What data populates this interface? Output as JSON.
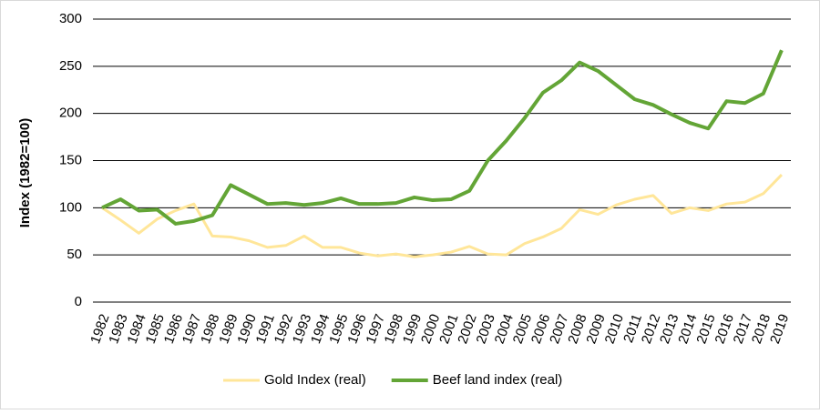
{
  "chart_data": {
    "type": "line",
    "ylabel": "Index (1982=100)",
    "categories": [
      "1982",
      "1983",
      "1984",
      "1985",
      "1986",
      "1987",
      "1988",
      "1989",
      "1990",
      "1991",
      "1992",
      "1993",
      "1994",
      "1995",
      "1996",
      "1997",
      "1998",
      "1999",
      "2000",
      "2001",
      "2002",
      "2003",
      "2004",
      "2005",
      "2006",
      "2007",
      "2008",
      "2009",
      "2010",
      "2011",
      "2012",
      "2013",
      "2014",
      "2015",
      "2016",
      "2017",
      "2018",
      "2019"
    ],
    "series": [
      {
        "name": "Gold Index (real)",
        "color": "#ffe699",
        "values": [
          100,
          87,
          73,
          88,
          97,
          104,
          70,
          69,
          65,
          58,
          60,
          70,
          58,
          58,
          52,
          49,
          51,
          48,
          50,
          53,
          59,
          51,
          50,
          62,
          69,
          78,
          98,
          93,
          103,
          109,
          113,
          94,
          100,
          97,
          104,
          106,
          115,
          135
        ]
      },
      {
        "name": "Beef land index (real)",
        "color": "#63a536",
        "values": [
          100,
          109,
          97,
          98,
          83,
          86,
          92,
          124,
          114,
          104,
          105,
          103,
          105,
          110,
          104,
          104,
          105,
          111,
          108,
          109,
          118,
          150,
          171,
          195,
          222,
          235,
          254,
          245,
          230,
          215,
          209,
          199,
          190,
          184,
          213,
          211,
          221,
          267
        ]
      }
    ],
    "ylim": [
      0,
      300
    ],
    "yticks": [
      0,
      50,
      100,
      150,
      200,
      250,
      300
    ],
    "grid": true,
    "legend": "bottom"
  }
}
